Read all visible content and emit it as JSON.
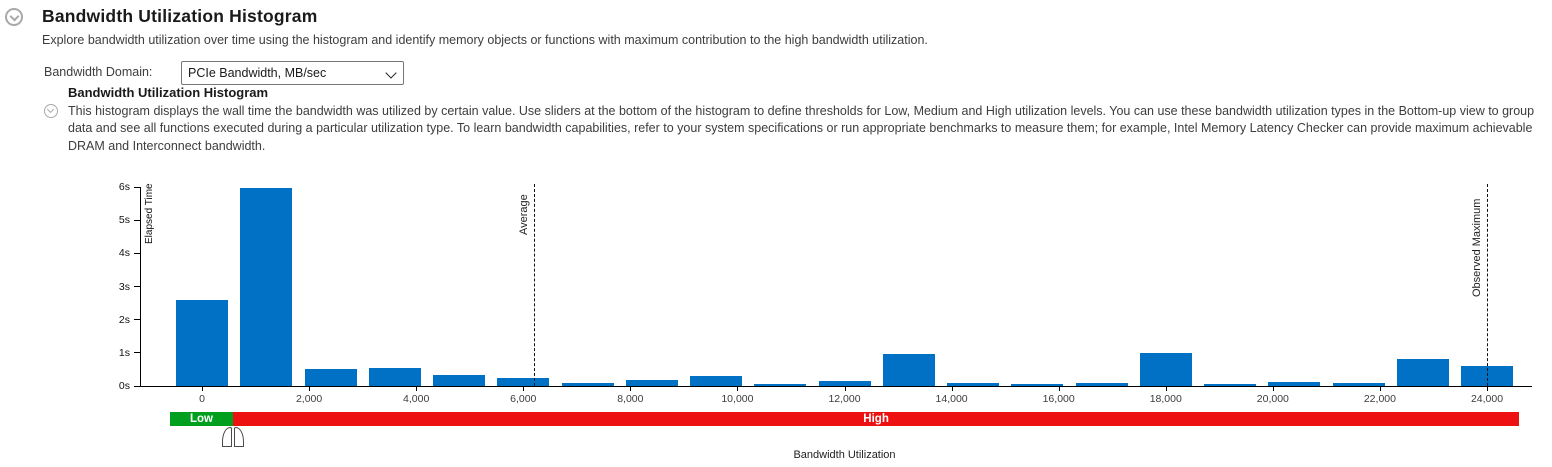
{
  "header": {
    "title": "Bandwidth Utilization Histogram",
    "description": "Explore bandwidth utilization over time using the histogram and identify memory objects or functions with maximum contribution to the high bandwidth utilization.",
    "collapse_icon": "chevron-down-circle-icon"
  },
  "controls": {
    "bandwidth_domain_label": "Bandwidth Domain:",
    "bandwidth_domain_value": "PCIe Bandwidth, MB/sec",
    "dropdown_icon": "chevron-down-icon"
  },
  "section": {
    "title": "Bandwidth Utilization Histogram",
    "collapse_icon": "chevron-down-circle-icon",
    "description": "This histogram displays the wall time the bandwidth was utilized by certain value. Use sliders at the bottom of the histogram to define thresholds for Low, Medium and High utilization levels. You can use these bandwidth utilization types in the Bottom-up view to group data and see all functions executed during a particular utilization type. To learn bandwidth capabilities, refer to your system specifications or run appropriate benchmarks to measure them; for example, Intel Memory Latency Checker can provide maximum achievable DRAM and Interconnect bandwidth."
  },
  "chart_data": {
    "type": "bar",
    "title": "",
    "xlabel": "Bandwidth Utilization",
    "ylabel": "Elapsed Time",
    "bar_color": "#0071c5",
    "bin_width": 1200,
    "x": [
      0,
      1200,
      2400,
      3600,
      4800,
      6000,
      7200,
      8400,
      9600,
      10800,
      12000,
      13200,
      14400,
      15600,
      16800,
      18000,
      19200,
      20400,
      21600,
      22800,
      24000
    ],
    "values_seconds": [
      2.6,
      5.98,
      0.52,
      0.55,
      0.33,
      0.25,
      0.08,
      0.18,
      0.3,
      0.05,
      0.14,
      0.95,
      0.08,
      0.05,
      0.1,
      1.0,
      0.05,
      0.12,
      0.1,
      0.82,
      0.6
    ],
    "ylim": [
      0,
      6
    ],
    "xlim": [
      -600,
      24600
    ],
    "y_tick_values": [
      0,
      1,
      2,
      3,
      4,
      5,
      6
    ],
    "y_tick_labels": [
      "0s",
      "1s",
      "2s",
      "3s",
      "4s",
      "5s",
      "6s"
    ],
    "x_tick_values": [
      0,
      2000,
      4000,
      6000,
      8000,
      10000,
      12000,
      14000,
      16000,
      18000,
      20000,
      22000,
      24000
    ],
    "x_tick_labels": [
      "0",
      "2,000",
      "4,000",
      "6,000",
      "8,000",
      "10,000",
      "12,000",
      "14,000",
      "16,000",
      "18,000",
      "20,000",
      "22,000",
      "24,000"
    ],
    "grid": false,
    "annotations": [
      {
        "label": "Average",
        "x": 6200
      },
      {
        "label": "Observed Maximum",
        "x": 24000
      }
    ]
  },
  "slider": {
    "thresholds": [
      580,
      580
    ],
    "regions": [
      {
        "label": "Low",
        "color": "#00a01e",
        "from": -600,
        "to": 580
      },
      {
        "label": "High",
        "color": "#ee1111",
        "from": 580,
        "to": 24600
      }
    ]
  }
}
